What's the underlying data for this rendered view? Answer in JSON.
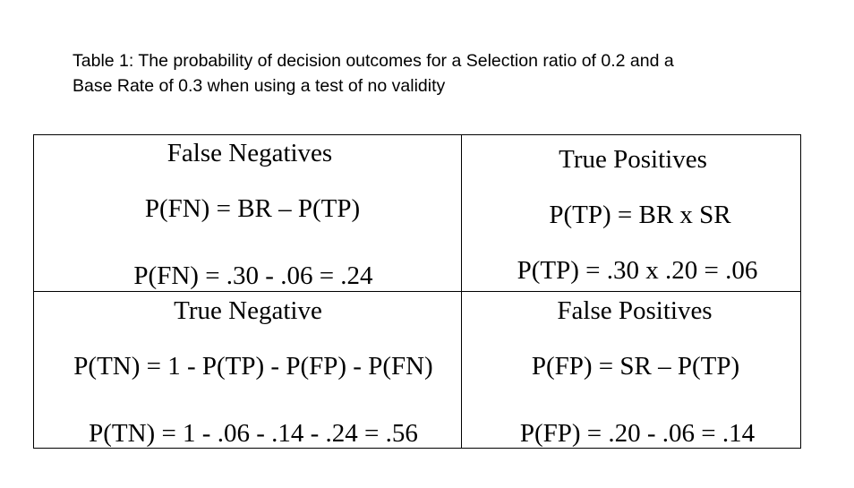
{
  "caption": {
    "line1": "Table 1: The probability of decision outcomes for a Selection ratio of 0.2 and a",
    "line2": "Base Rate of 0.3 when using a test of no validity"
  },
  "cells": {
    "false_negatives": {
      "heading": "False Negatives",
      "formula": "P(FN) = BR – P(TP)",
      "computation": "P(FN) = .30 - .06 = .24"
    },
    "true_positives": {
      "heading": "True Positives",
      "formula": "P(TP) = BR x SR",
      "computation": "P(TP) = .30 x .20 = .06"
    },
    "true_negative": {
      "heading": "True Negative",
      "formula": "P(TN) = 1 - P(TP) - P(FP) - P(FN)",
      "computation": "P(TN) = 1 - .06 - .14 - .24 = .56"
    },
    "false_positives": {
      "heading": "False Positives",
      "formula": "P(FP) = SR – P(TP)",
      "computation": "P(FP) = .20 - .06 = .14"
    }
  }
}
